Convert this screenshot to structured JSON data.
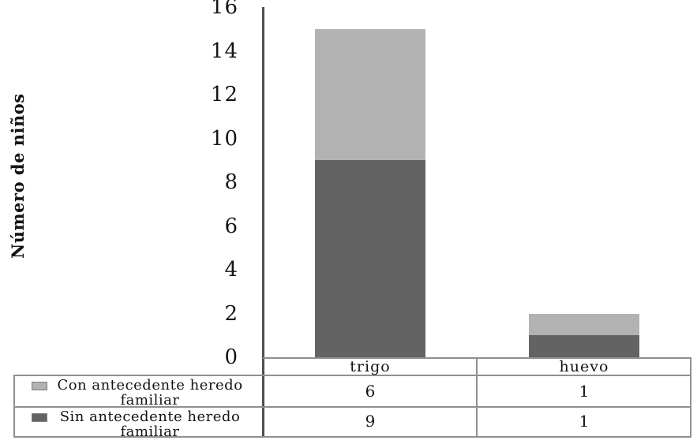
{
  "chart_data": {
    "type": "bar",
    "stacked": true,
    "title": "",
    "xlabel": "",
    "ylabel": "Número de niños",
    "ylim": [
      0,
      16
    ],
    "yticks": [
      0,
      2,
      4,
      6,
      8,
      10,
      12,
      14,
      16
    ],
    "grid": false,
    "legend_position": "bottom-left-table",
    "categories": [
      "trigo",
      "huevo"
    ],
    "series": [
      {
        "name": "Con antecedente heredo familiar",
        "color": "#b2b2b2",
        "values": [
          6,
          1
        ]
      },
      {
        "name": "Sin antecedente heredo familiar",
        "color": "#636363",
        "values": [
          9,
          1
        ]
      }
    ]
  },
  "colors": {
    "background": "#ffffff",
    "axis_line": "#4f4f4f",
    "table_border": "#8f8f8f",
    "text": "#141414",
    "con_series": "#b2b2b2",
    "sin_series": "#636363"
  }
}
